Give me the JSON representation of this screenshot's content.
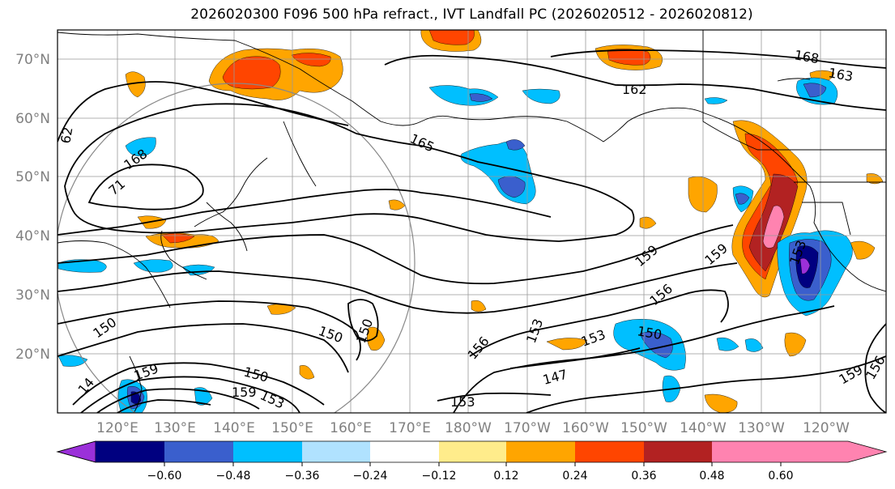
{
  "title": "2026020300 F096 500 hPa refract., IVT Landfall PC (2026020512 - 2026020812)",
  "lat_labels": [
    "70°N",
    "60°N",
    "50°N",
    "40°N",
    "30°N",
    "20°N"
  ],
  "lon_labels": [
    "120°E",
    "130°E",
    "140°E",
    "150°E",
    "160°E",
    "170°E",
    "180°W",
    "170°W",
    "160°W",
    "150°W",
    "140°W",
    "130°W",
    "120°W"
  ],
  "contour_labels": [
    "168",
    "163",
    "162",
    "62",
    "168",
    "165",
    "71",
    "159",
    "159",
    "156",
    "153",
    "153",
    "150",
    "150",
    "150",
    "150",
    "159",
    "147",
    "156",
    "153",
    "159",
    "156",
    "150",
    "159",
    "14",
    "153",
    "153"
  ],
  "colorbar": {
    "tick_labels": [
      "−0.60",
      "−0.48",
      "−0.36",
      "−0.24",
      "−0.12",
      "0.12",
      "0.24",
      "0.36",
      "0.48",
      "0.60"
    ],
    "colors": [
      "#9b30d9",
      "#000080",
      "#3a5fcd",
      "#00bfff",
      "#b0e2ff",
      "#ffffff",
      "#ffec8b",
      "#ffa500",
      "#ff4500",
      "#b22222",
      "#ff83b0"
    ]
  }
}
